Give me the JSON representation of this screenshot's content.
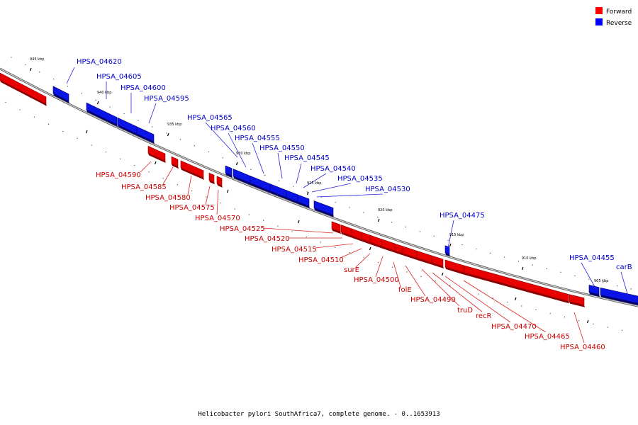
{
  "legend": [
    {
      "label": "Forward",
      "color": "#ff0000"
    },
    {
      "label": "Reverse",
      "color": "#0000ff"
    }
  ],
  "caption": "Helicobacter pylori SouthAfrica7, complete genome. - 0..1653913",
  "colors": {
    "forward": "#e80000",
    "forward_dark": "#8a0000",
    "reverse": "#0a14e6",
    "reverse_dark": "#00006e",
    "forward_label": "#cc0000",
    "reverse_label": "#0000cc",
    "axis": "#888888"
  },
  "ticks": [
    "945 kbp",
    "940 kbp",
    "935 kbp",
    "930 kbp",
    "925 kbp",
    "920 kbp",
    "915 kbp",
    "910 kbp",
    "905 kbp"
  ],
  "genes": [
    {
      "label": "HPSA_04620",
      "strand": "reverse"
    },
    {
      "label": "HPSA_04605",
      "strand": "reverse"
    },
    {
      "label": "HPSA_04600",
      "strand": "reverse"
    },
    {
      "label": "HPSA_04595",
      "strand": "reverse"
    },
    {
      "label": "HPSA_04565",
      "strand": "reverse"
    },
    {
      "label": "HPSA_04560",
      "strand": "reverse"
    },
    {
      "label": "HPSA_04555",
      "strand": "reverse"
    },
    {
      "label": "HPSA_04550",
      "strand": "reverse"
    },
    {
      "label": "HPSA_04545",
      "strand": "reverse"
    },
    {
      "label": "HPSA_04540",
      "strand": "reverse"
    },
    {
      "label": "HPSA_04535",
      "strand": "reverse"
    },
    {
      "label": "HPSA_04530",
      "strand": "reverse"
    },
    {
      "label": "HPSA_04475",
      "strand": "reverse"
    },
    {
      "label": "HPSA_04455",
      "strand": "reverse"
    },
    {
      "label": "carB",
      "strand": "reverse"
    },
    {
      "label": "HPSA_04590",
      "strand": "forward"
    },
    {
      "label": "HPSA_04585",
      "strand": "forward"
    },
    {
      "label": "HPSA_04580",
      "strand": "forward"
    },
    {
      "label": "HPSA_04575",
      "strand": "forward"
    },
    {
      "label": "HPSA_04570",
      "strand": "forward"
    },
    {
      "label": "HPSA_04525",
      "strand": "forward"
    },
    {
      "label": "HPSA_04520",
      "strand": "forward"
    },
    {
      "label": "HPSA_04515",
      "strand": "forward"
    },
    {
      "label": "HPSA_04510",
      "strand": "forward"
    },
    {
      "label": "surE",
      "strand": "forward"
    },
    {
      "label": "HPSA_04500",
      "strand": "forward"
    },
    {
      "label": "folE",
      "strand": "forward"
    },
    {
      "label": "HPSA_04490",
      "strand": "forward"
    },
    {
      "label": "truD",
      "strand": "forward"
    },
    {
      "label": "recR",
      "strand": "forward"
    },
    {
      "label": "HPSA_04470",
      "strand": "forward"
    },
    {
      "label": "HPSA_04465",
      "strand": "forward"
    },
    {
      "label": "HPSA_04460",
      "strand": "forward"
    }
  ]
}
